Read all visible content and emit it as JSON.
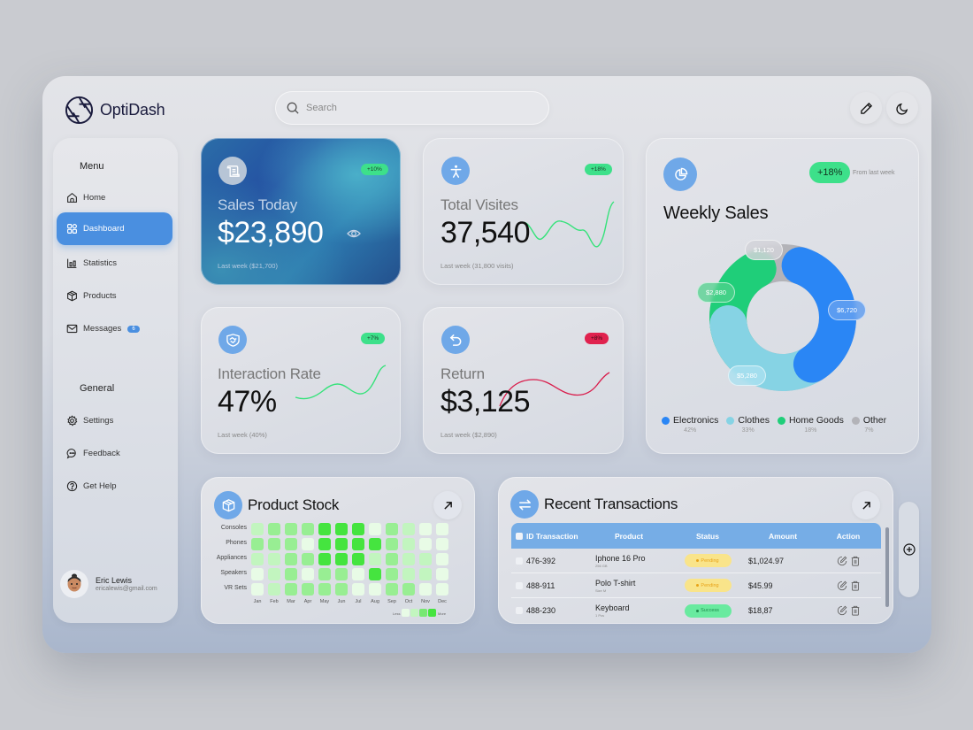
{
  "app": {
    "name": "OptiDash"
  },
  "search": {
    "placeholder": "Search",
    "value": ""
  },
  "header_actions": [
    {
      "icon": "pencil-icon",
      "label": "Edit"
    },
    {
      "icon": "moon-icon",
      "label": "Dark mode"
    }
  ],
  "sidebar": {
    "menu_label": "Menu",
    "general_label": "General",
    "menu_items": [
      {
        "label": "Home",
        "icon": "home-icon",
        "active": false
      },
      {
        "label": "Dashboard",
        "icon": "grid-icon",
        "active": true
      },
      {
        "label": "Statistics",
        "icon": "bar-chart-icon",
        "active": false
      },
      {
        "label": "Products",
        "icon": "box-icon",
        "active": false
      },
      {
        "label": "Messages",
        "icon": "mail-icon",
        "active": false,
        "badge": "6"
      }
    ],
    "general_items": [
      {
        "label": "Settings",
        "icon": "gear-icon"
      },
      {
        "label": "Feedback",
        "icon": "chat-icon"
      },
      {
        "label": "Get Help",
        "icon": "help-icon"
      }
    ],
    "user": {
      "name": "Eric Lewis",
      "email": "ericalewis@gmail.com"
    }
  },
  "kpis": {
    "sales_today": {
      "title": "Sales Today",
      "value": "$23,890",
      "change": "+10%",
      "sub": "Last week ($21,700)",
      "icon": "receipt-icon"
    },
    "total_visits": {
      "title": "Total Visites",
      "value": "37,540",
      "change": "+18%",
      "sub": "Last week (31,800 visits)",
      "icon": "person-icon"
    },
    "interaction_rate": {
      "title": "Interaction Rate",
      "value": "47%",
      "change": "+7%",
      "sub": "Last week (40%)",
      "icon": "handshake-icon"
    },
    "return": {
      "title": "Return",
      "value": "$3,125",
      "change": "+8%",
      "sub": "Last week ($2,890)",
      "icon": "undo-icon"
    }
  },
  "weekly_sales": {
    "title": "Weekly Sales",
    "change": "+18%",
    "change_note": "From last week",
    "segments": [
      {
        "name": "Electronics",
        "value": "$6,720",
        "pct": "42%",
        "color": "#2a86f5"
      },
      {
        "name": "Clothes",
        "value": "$5,280",
        "pct": "33%",
        "color": "#86d3e4"
      },
      {
        "name": "Home Goods",
        "value": "$2,880",
        "pct": "18%",
        "color": "#1fce79"
      },
      {
        "name": "Other",
        "value": "$1,120",
        "pct": "7%",
        "color": "#b3b3b8"
      }
    ]
  },
  "product_stock": {
    "title": "Product Stock",
    "rows": [
      "Consoles",
      "Phones",
      "Appliances",
      "Speakers",
      "VR Sets"
    ],
    "cols": [
      "Jan",
      "Feb",
      "Mar",
      "Apr",
      "May",
      "Jun",
      "Jul",
      "Aug",
      "Sep",
      "Oct",
      "Nov",
      "Dec"
    ],
    "levels": [
      [
        1,
        2,
        2,
        2,
        4,
        4,
        4,
        0,
        2,
        1,
        0,
        0
      ],
      [
        2,
        2,
        2,
        0,
        4,
        4,
        4,
        4,
        2,
        1,
        0,
        0
      ],
      [
        1,
        1,
        2,
        2,
        4,
        4,
        4,
        1,
        2,
        1,
        1,
        0
      ],
      [
        0,
        1,
        2,
        0,
        2,
        2,
        0,
        4,
        2,
        1,
        1,
        0
      ],
      [
        0,
        1,
        2,
        2,
        2,
        2,
        0,
        0,
        2,
        2,
        0,
        0
      ]
    ],
    "legend_less": "Less",
    "legend_more": "More"
  },
  "transactions": {
    "title": "Recent Transactions",
    "columns": [
      "ID Transaction",
      "Product",
      "Status",
      "Amount",
      "Action"
    ],
    "rows": [
      {
        "id": "476-392",
        "product": "Iphone 16 Pro",
        "detail": "256 GB",
        "status": "Pending",
        "amount": "$1,024.97"
      },
      {
        "id": "488-911",
        "product": "Polo T-shirt",
        "detail": "Size M",
        "status": "Pending",
        "amount": "$45.99"
      },
      {
        "id": "488-230",
        "product": "Keyboard",
        "detail": "1 Pcs",
        "status": "Success",
        "amount": "$18,87"
      }
    ]
  },
  "colors": {
    "accent": "#4a8fe0",
    "icon_bg": "#6fa8e8",
    "positive": "#3de08a",
    "negative": "#e0224e",
    "table_header": "#76ade6"
  }
}
